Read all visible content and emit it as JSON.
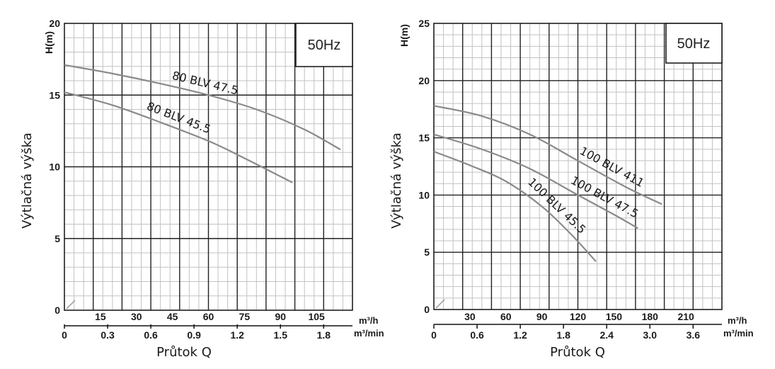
{
  "chart_data": [
    {
      "type": "line",
      "frequency_badge": "50Hz",
      "ylabel": "Výtlačná výška",
      "ylabel_top": "H(m)",
      "xlabel": "Průtok Q",
      "x_unit_primary": "m³/h",
      "x_unit_secondary": "m³/min",
      "ylim": [
        0,
        20
      ],
      "yticks": [
        "0",
        "5",
        "10",
        "15",
        "20"
      ],
      "xlim": [
        0,
        120
      ],
      "xticks_primary": [
        "15",
        "30",
        "45",
        "60",
        "75",
        "90",
        "105"
      ],
      "xticks_primary_values": [
        15,
        30,
        45,
        60,
        75,
        90,
        105
      ],
      "xticks_secondary": [
        "0",
        "0.3",
        "0.6",
        "0.9",
        "1.2",
        "1.5",
        "1.8"
      ],
      "xticks_secondary_values": [
        0,
        18,
        36,
        54,
        72,
        90,
        108
      ],
      "grid": true,
      "series": [
        {
          "name": "80 BLV 47.5",
          "x": [
            0,
            20,
            40,
            60,
            80,
            100,
            115
          ],
          "y": [
            17.1,
            16.5,
            15.8,
            15.0,
            14.0,
            12.6,
            11.2
          ]
        },
        {
          "name": "80 BLV 45.5",
          "x": [
            0,
            20,
            40,
            60,
            75,
            95
          ],
          "y": [
            15.2,
            14.3,
            13.1,
            11.8,
            10.6,
            8.9
          ]
        }
      ]
    },
    {
      "type": "line",
      "frequency_badge": "50Hz",
      "ylabel": "Výtlačná výška",
      "ylabel_top": "H(m)",
      "xlabel": "Průtok Q",
      "x_unit_primary": "m³/h",
      "x_unit_secondary": "m³/min",
      "ylim": [
        0,
        25
      ],
      "yticks": [
        "0",
        "5",
        "10",
        "15",
        "20",
        "25"
      ],
      "xlim": [
        0,
        240
      ],
      "xticks_primary": [
        "30",
        "60",
        "90",
        "120",
        "150",
        "180",
        "210"
      ],
      "xticks_primary_values": [
        30,
        60,
        90,
        120,
        150,
        180,
        210
      ],
      "xticks_secondary": [
        "0",
        "0.6",
        "1.2",
        "1.8",
        "2.4",
        "3.0",
        "3.6"
      ],
      "xticks_secondary_values": [
        0,
        36,
        72,
        108,
        144,
        180,
        216
      ],
      "grid": true,
      "series": [
        {
          "name": "100 BLV 411",
          "x": [
            0,
            40,
            80,
            120,
            160,
            190
          ],
          "y": [
            17.8,
            16.9,
            15.3,
            13.0,
            10.7,
            9.2
          ]
        },
        {
          "name": "100 BLV 47.5",
          "x": [
            0,
            40,
            80,
            120,
            150,
            170
          ],
          "y": [
            15.3,
            14.0,
            12.3,
            10.0,
            8.3,
            7.1
          ]
        },
        {
          "name": "100 BLV 45.5",
          "x": [
            0,
            30,
            60,
            90,
            115,
            135
          ],
          "y": [
            13.8,
            12.6,
            11.2,
            9.0,
            6.5,
            4.2
          ]
        }
      ]
    }
  ]
}
